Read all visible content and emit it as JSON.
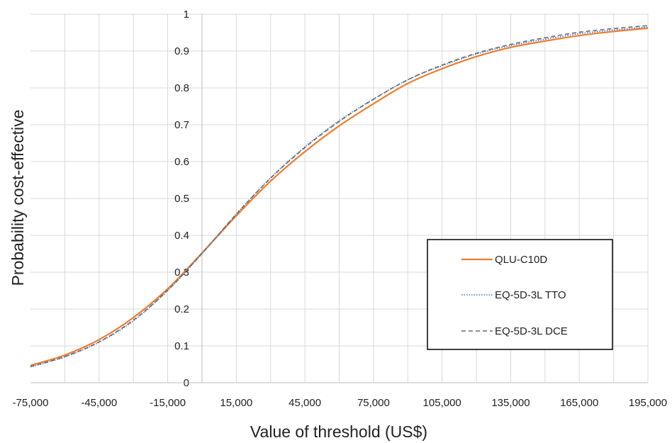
{
  "chart_data": {
    "type": "line",
    "xlabel": "Value of threshold (US$)",
    "ylabel": "Probability cost-effective",
    "xlim": [
      -75000,
      195000
    ],
    "ylim": [
      0,
      1
    ],
    "x_ticks": [
      -75000,
      -45000,
      -15000,
      15000,
      45000,
      75000,
      105000,
      135000,
      165000,
      195000
    ],
    "x_tick_labels": [
      "-75,000",
      "-45,000",
      "-15,000",
      "15,000",
      "45,000",
      "75,000",
      "105,000",
      "135,000",
      "165,000",
      "195,000"
    ],
    "y_ticks": [
      0,
      0.1,
      0.2,
      0.3,
      0.4,
      0.5,
      0.6,
      0.7,
      0.8,
      0.9,
      1
    ],
    "y_tick_labels": [
      "0",
      "0.1",
      "0.2",
      "0.3",
      "0.4",
      "0.5",
      "0.6",
      "0.7",
      "0.8",
      "0.9",
      "1"
    ],
    "grid": "vertical and horizontal",
    "legend_position": "right",
    "x": [
      -75000,
      -60000,
      -45000,
      -30000,
      -15000,
      0,
      15000,
      30000,
      45000,
      60000,
      75000,
      90000,
      105000,
      120000,
      135000,
      150000,
      165000,
      180000,
      195000
    ],
    "series": [
      {
        "name": "QLU-C10D",
        "color": "#ED7D31",
        "style": "solid",
        "values": [
          0.047,
          0.075,
          0.117,
          0.177,
          0.255,
          0.352,
          0.453,
          0.547,
          0.627,
          0.697,
          0.757,
          0.812,
          0.852,
          0.885,
          0.91,
          0.927,
          0.942,
          0.953,
          0.962
        ]
      },
      {
        "name": "EQ-5D-3L TTO",
        "color": "#4472C4",
        "style": "dotted",
        "values": [
          0.043,
          0.07,
          0.11,
          0.168,
          0.25,
          0.35,
          0.458,
          0.556,
          0.64,
          0.711,
          0.77,
          0.822,
          0.86,
          0.892,
          0.915,
          0.932,
          0.947,
          0.957,
          0.965
        ]
      },
      {
        "name": "EQ-5D-3L DCE",
        "color": "#6B6B6B",
        "style": "dashed",
        "values": [
          0.044,
          0.071,
          0.111,
          0.17,
          0.251,
          0.351,
          0.457,
          0.555,
          0.638,
          0.709,
          0.769,
          0.822,
          0.862,
          0.894,
          0.918,
          0.936,
          0.951,
          0.961,
          0.969
        ]
      }
    ]
  }
}
